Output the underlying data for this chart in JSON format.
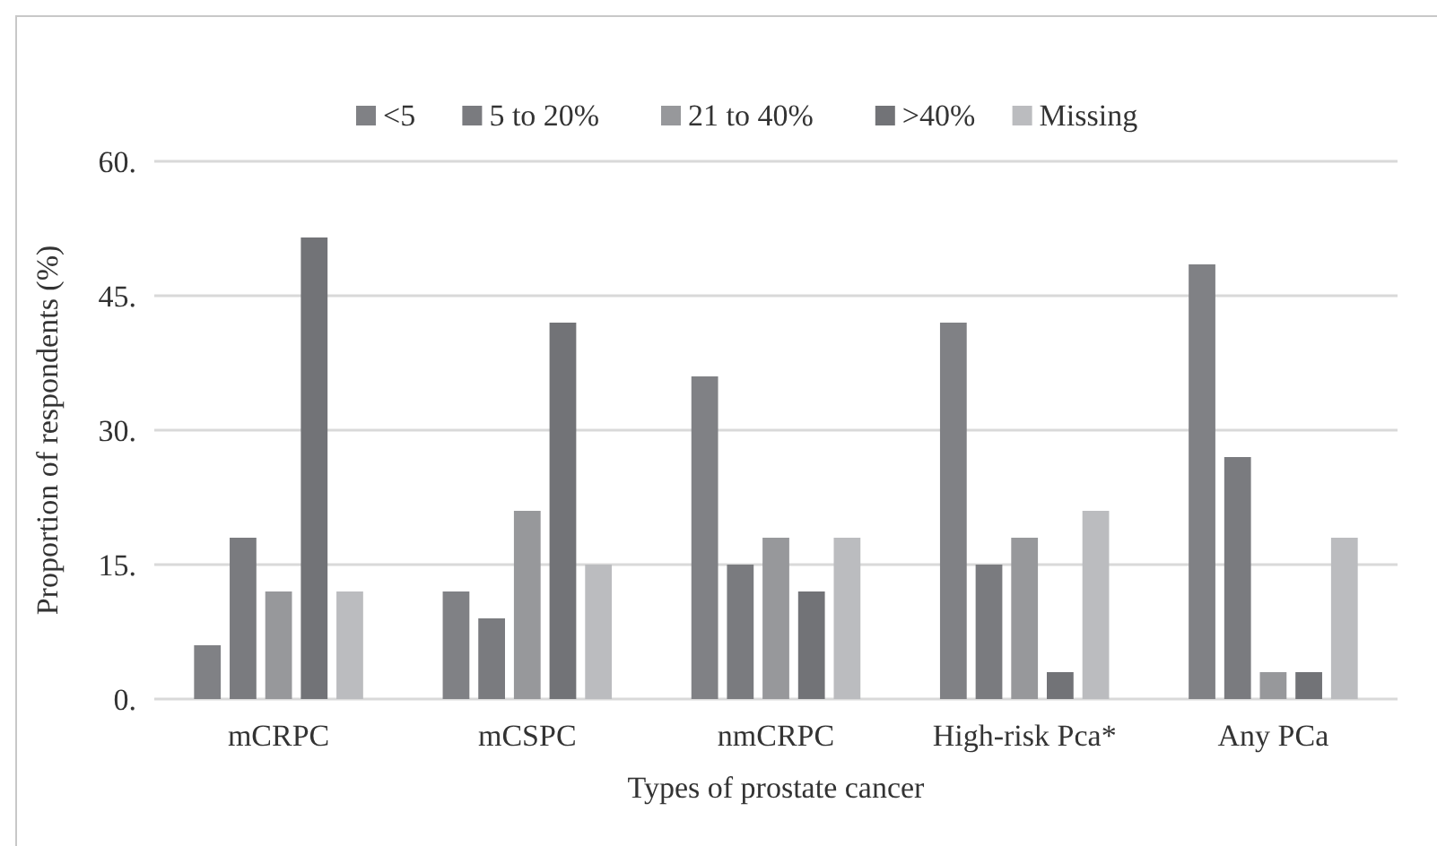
{
  "chart_data": {
    "type": "bar",
    "xlabel": "Types of prostate cancer",
    "ylabel": "Proportion of respondents (%)",
    "categories": [
      "mCRPC",
      "mCSPC",
      "nmCRPC",
      "High-risk Pca*",
      "Any PCa"
    ],
    "series": [
      {
        "name": "<5",
        "color": "#808185",
        "values": [
          6,
          12,
          36,
          42,
          48.5
        ]
      },
      {
        "name": "5 to 20%",
        "color": "#7a7b7f",
        "values": [
          18,
          9,
          15,
          15,
          27
        ]
      },
      {
        "name": "21 to 40%",
        "color": "#97989b",
        "values": [
          12,
          21,
          18,
          18,
          3
        ]
      },
      {
        "name": ">40%",
        "color": "#727377",
        "values": [
          51.5,
          42,
          12,
          3,
          3
        ]
      },
      {
        "name": "Missing",
        "color": "#bbbcbf",
        "values": [
          12,
          15,
          18,
          21,
          18
        ]
      }
    ],
    "ylim": [
      0,
      60
    ],
    "yticks": [
      {
        "value": 0,
        "label": "0."
      },
      {
        "value": 15,
        "label": "15."
      },
      {
        "value": 30,
        "label": "30."
      },
      {
        "value": 45,
        "label": "45."
      },
      {
        "value": 60,
        "label": "60."
      }
    ],
    "grid": "y",
    "legend": "top"
  }
}
